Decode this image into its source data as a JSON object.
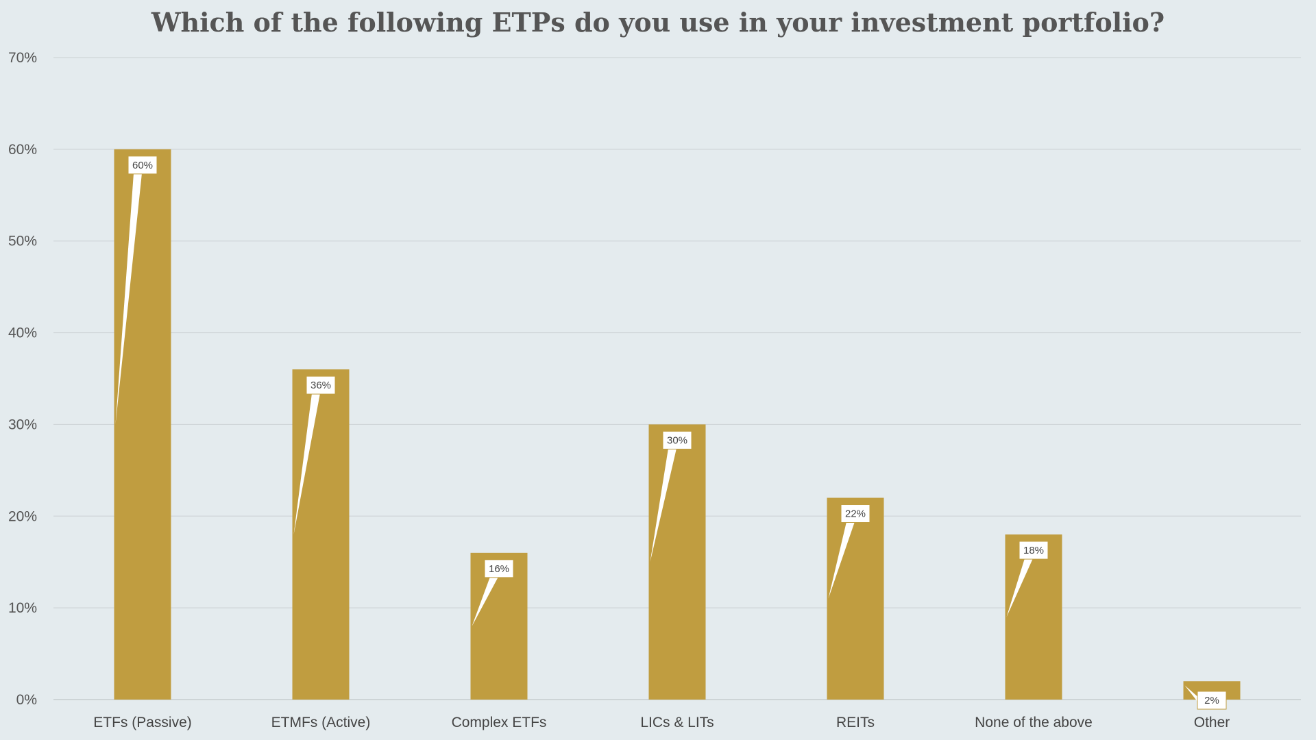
{
  "chart_data": {
    "type": "bar",
    "title": "Which of the following ETPs do you use in your investment portfolio?",
    "categories": [
      "ETFs (Passive)",
      "ETMFs (Active)",
      "Complex ETFs",
      "LICs & LITs",
      "REITs",
      "None of the above",
      "Other"
    ],
    "values": [
      60,
      36,
      16,
      30,
      22,
      18,
      2
    ],
    "data_labels": [
      "60%",
      "36%",
      "16%",
      "30%",
      "22%",
      "18%",
      "2%"
    ],
    "y_ticks": [
      0,
      10,
      20,
      30,
      40,
      50,
      60,
      70
    ],
    "y_tick_labels": [
      "0%",
      "10%",
      "20%",
      "30%",
      "40%",
      "50%",
      "60%",
      "70%"
    ],
    "ylim": [
      0,
      70
    ],
    "xlabel": "",
    "ylabel": "",
    "grid": true,
    "legend": "none",
    "colors": {
      "bar": "#c09d40",
      "grid": "#cfd5d8",
      "background": "#e4ebee",
      "callout_fill": "#ffffff",
      "callout_border": "#c09d40"
    }
  }
}
